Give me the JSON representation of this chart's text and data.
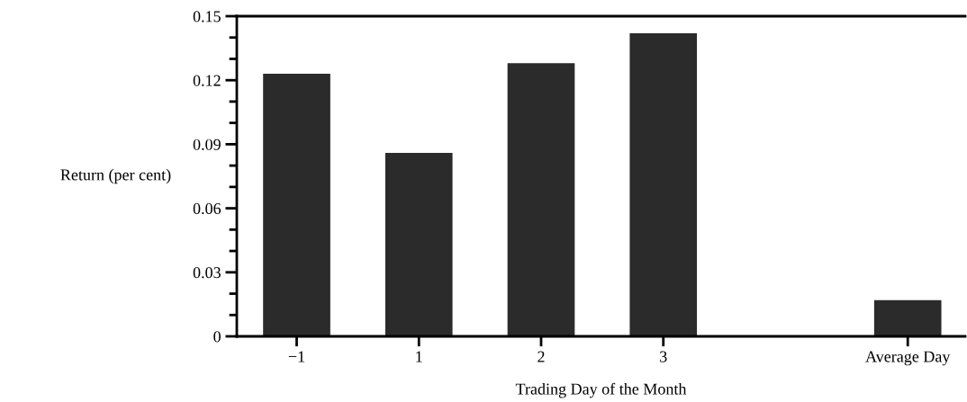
{
  "chart_data": {
    "type": "bar",
    "xlabel": "Trading Day of the Month",
    "ylabel": "Return (per cent)",
    "categories": [
      "−1",
      "1",
      "2",
      "3",
      null,
      "Average Day"
    ],
    "values": [
      0.123,
      0.086,
      0.128,
      0.142,
      null,
      0.017
    ],
    "color": "#2b2b2b",
    "ylim": [
      0,
      0.15
    ],
    "yticks": [
      {
        "value": 0,
        "label": "0"
      },
      0.03,
      0.06,
      0.09,
      0.12,
      0.15
    ],
    "grid": false
  }
}
